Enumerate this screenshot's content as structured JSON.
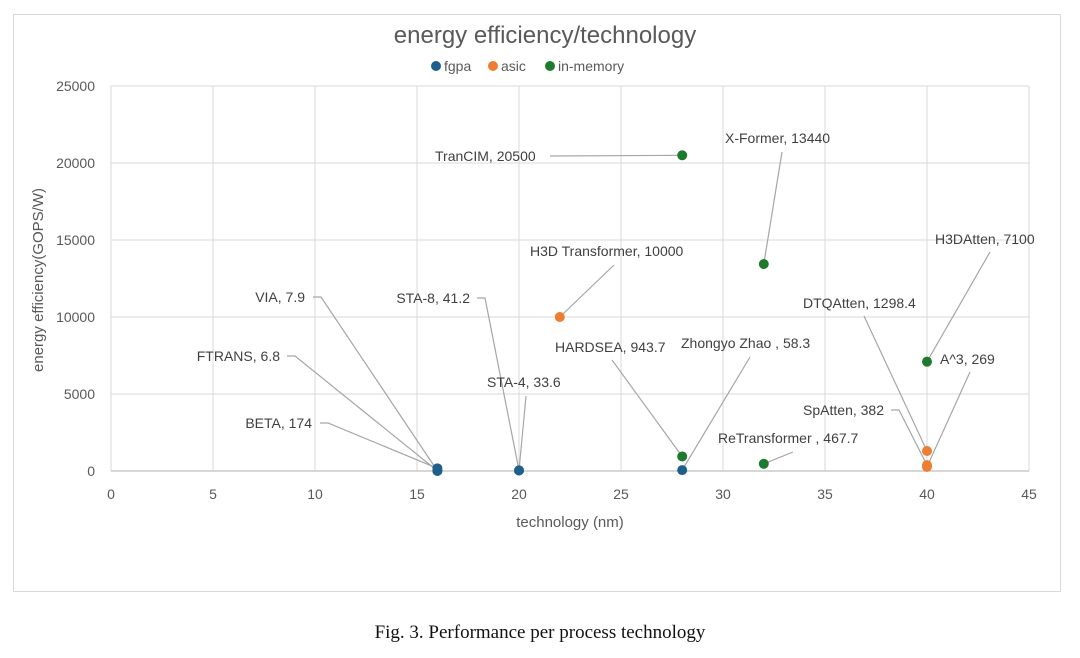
{
  "caption": "Fig. 3.  Performance per process technology",
  "chart_data": {
    "type": "scatter",
    "title": "energy efficiency/technology",
    "xlabel": "technology (nm)",
    "ylabel": "energy efficiency(GOPS/W)",
    "xlim": [
      0,
      45
    ],
    "ylim": [
      0,
      25000
    ],
    "xticks": [
      0,
      5,
      10,
      15,
      20,
      25,
      30,
      35,
      40,
      45
    ],
    "yticks": [
      0,
      5000,
      10000,
      15000,
      20000,
      25000
    ],
    "grid": true,
    "legend_position": "top-center",
    "series": [
      {
        "name": "fgpa",
        "color": "#1f5f8b",
        "points": [
          {
            "label": "VIA, 7.9",
            "x": 16,
            "y": 7.9
          },
          {
            "label": "FTRANS, 6.8",
            "x": 16,
            "y": 6.8
          },
          {
            "label": "BETA, 174",
            "x": 16,
            "y": 174
          },
          {
            "label": "STA-8, 41.2",
            "x": 20,
            "y": 41.2
          },
          {
            "label": "STA-4, 33.6",
            "x": 20,
            "y": 33.6
          },
          {
            "label": "Zhongyo Zhao , 58.3",
            "x": 28,
            "y": 58.3
          }
        ]
      },
      {
        "name": "asic",
        "color": "#ed7d31",
        "points": [
          {
            "label": "H3D Transformer, 10000",
            "x": 22,
            "y": 10000
          },
          {
            "label": "DTQAtten, 1298.4",
            "x": 40,
            "y": 1298.4
          },
          {
            "label": "SpAtten, 382",
            "x": 40,
            "y": 382
          },
          {
            "label": "A^3, 269",
            "x": 40,
            "y": 269
          }
        ]
      },
      {
        "name": "in-memory",
        "color": "#1e7a2e",
        "points": [
          {
            "label": "TranCIM, 20500",
            "x": 28,
            "y": 20500
          },
          {
            "label": "X-Former, 13440",
            "x": 32,
            "y": 13440
          },
          {
            "label": "H3DAtten, 7100",
            "x": 40,
            "y": 7100
          },
          {
            "label": "HARDSEA, 943.7",
            "x": 28,
            "y": 943.7
          },
          {
            "label": "ReTransformer , 467.7",
            "x": 32,
            "y": 467.7
          }
        ]
      }
    ]
  }
}
